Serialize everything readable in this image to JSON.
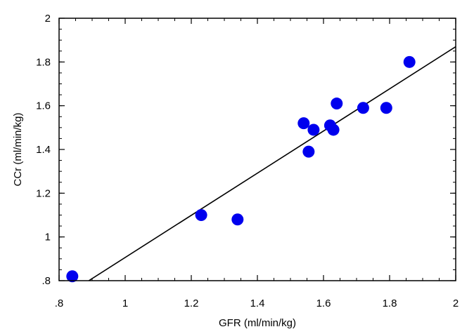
{
  "chart_data": {
    "type": "scatter",
    "title": "",
    "xlabel": "GFR (ml/min/kg)",
    "ylabel": "CCr (ml/min/kg)",
    "xlim": [
      0.8,
      2.0
    ],
    "ylim": [
      0.8,
      2.0
    ],
    "x_ticks": [
      0.8,
      1.0,
      1.2,
      1.4,
      1.6,
      1.8,
      2.0
    ],
    "y_ticks": [
      0.8,
      1.0,
      1.2,
      1.4,
      1.6,
      1.8,
      2.0
    ],
    "x_tick_labels": [
      ".8",
      "1",
      "1.2",
      "1.4",
      "1.6",
      "1.8",
      "2"
    ],
    "y_tick_labels": [
      ".8",
      "1",
      "1.2",
      "1.4",
      "1.6",
      "1.8",
      "2"
    ],
    "grid": false,
    "legend": "none",
    "marker_color": "#0000ee",
    "line_color": "#000000",
    "points": [
      {
        "x": 0.84,
        "y": 0.82
      },
      {
        "x": 1.23,
        "y": 1.1
      },
      {
        "x": 1.34,
        "y": 1.08
      },
      {
        "x": 1.54,
        "y": 1.52
      },
      {
        "x": 1.555,
        "y": 1.39
      },
      {
        "x": 1.57,
        "y": 1.49
      },
      {
        "x": 1.62,
        "y": 1.51
      },
      {
        "x": 1.63,
        "y": 1.49
      },
      {
        "x": 1.64,
        "y": 1.61
      },
      {
        "x": 1.72,
        "y": 1.59
      },
      {
        "x": 1.79,
        "y": 1.59
      },
      {
        "x": 1.86,
        "y": 1.8
      }
    ],
    "fit_line": {
      "x": [
        0.89,
        2.0
      ],
      "y": [
        0.8,
        1.87
      ]
    }
  }
}
